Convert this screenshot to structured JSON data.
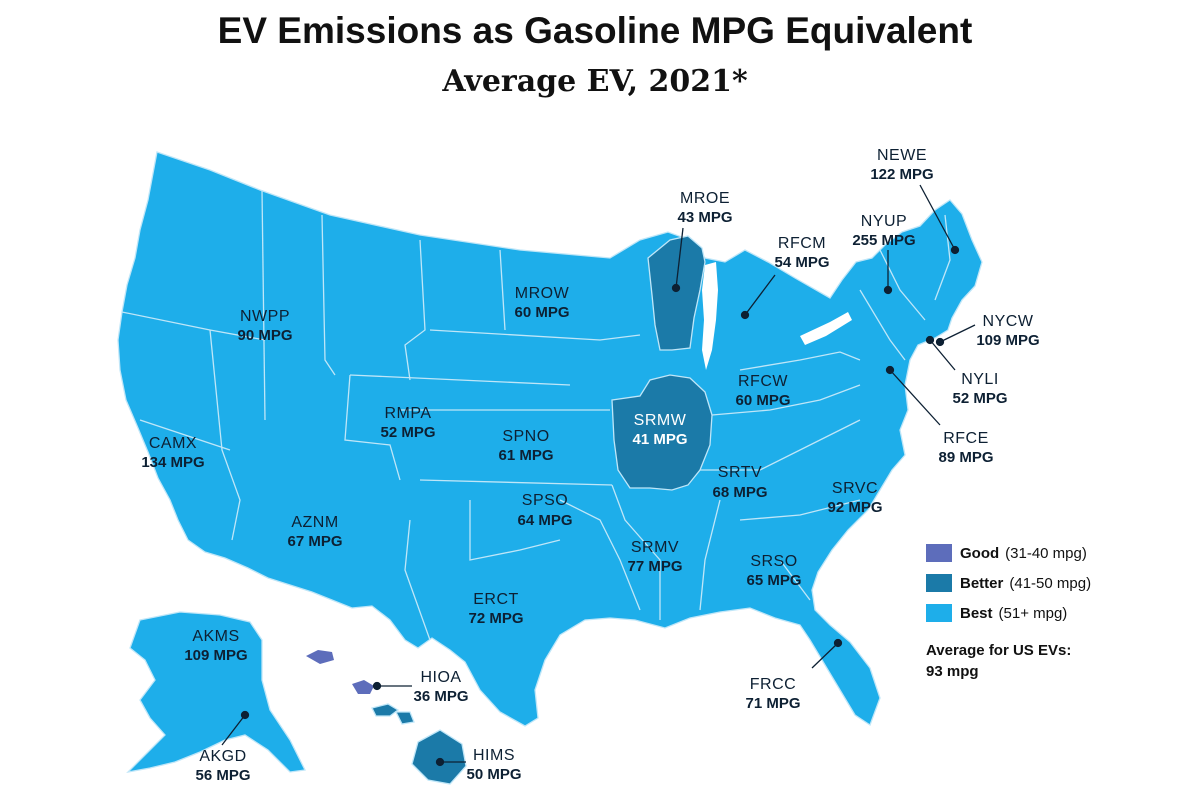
{
  "title": "EV Emissions as Gasoline MPG Equivalent",
  "subtitle": "Average EV, 2021*",
  "colors": {
    "good": "#5d6dbb",
    "better": "#1b7aa8",
    "best": "#1eaeea",
    "border": "#bfe6f8"
  },
  "legend": {
    "items": [
      {
        "label": "Good",
        "range": "(31-40 mpg)",
        "color": "#5d6dbb"
      },
      {
        "label": "Better",
        "range": "(41-50 mpg)",
        "color": "#1b7aa8"
      },
      {
        "label": "Best",
        "range": "(51+ mpg)",
        "color": "#1eaeea"
      }
    ],
    "average_label": "Average for US EVs:",
    "average_value": "93 mpg"
  },
  "regions": [
    {
      "code": "NWPP",
      "value": "90 MPG",
      "mpg": 90,
      "category": "best"
    },
    {
      "code": "CAMX",
      "value": "134 MPG",
      "mpg": 134,
      "category": "best"
    },
    {
      "code": "AZNM",
      "value": "67 MPG",
      "mpg": 67,
      "category": "best"
    },
    {
      "code": "RMPA",
      "value": "52 MPG",
      "mpg": 52,
      "category": "best"
    },
    {
      "code": "MROW",
      "value": "60 MPG",
      "mpg": 60,
      "category": "best"
    },
    {
      "code": "SPNO",
      "value": "61 MPG",
      "mpg": 61,
      "category": "best"
    },
    {
      "code": "SPSO",
      "value": "64 MPG",
      "mpg": 64,
      "category": "best"
    },
    {
      "code": "ERCT",
      "value": "72 MPG",
      "mpg": 72,
      "category": "best"
    },
    {
      "code": "MROE",
      "value": "43 MPG",
      "mpg": 43,
      "category": "better"
    },
    {
      "code": "SRMW",
      "value": "41 MPG",
      "mpg": 41,
      "category": "better"
    },
    {
      "code": "RFCM",
      "value": "54 MPG",
      "mpg": 54,
      "category": "best"
    },
    {
      "code": "RFCW",
      "value": "60 MPG",
      "mpg": 60,
      "category": "best"
    },
    {
      "code": "SRTV",
      "value": "68 MPG",
      "mpg": 68,
      "category": "best"
    },
    {
      "code": "SRMV",
      "value": "77 MPG",
      "mpg": 77,
      "category": "best"
    },
    {
      "code": "SRSO",
      "value": "65 MPG",
      "mpg": 65,
      "category": "best"
    },
    {
      "code": "SRVC",
      "value": "92 MPG",
      "mpg": 92,
      "category": "best"
    },
    {
      "code": "FRCC",
      "value": "71 MPG",
      "mpg": 71,
      "category": "best"
    },
    {
      "code": "RFCE",
      "value": "89 MPG",
      "mpg": 89,
      "category": "best"
    },
    {
      "code": "NYLI",
      "value": "52 MPG",
      "mpg": 52,
      "category": "best"
    },
    {
      "code": "NYCW",
      "value": "109 MPG",
      "mpg": 109,
      "category": "best"
    },
    {
      "code": "NYUP",
      "value": "255 MPG",
      "mpg": 255,
      "category": "best"
    },
    {
      "code": "NEWE",
      "value": "122 MPG",
      "mpg": 122,
      "category": "best"
    },
    {
      "code": "AKMS",
      "value": "109 MPG",
      "mpg": 109,
      "category": "best"
    },
    {
      "code": "AKGD",
      "value": "56 MPG",
      "mpg": 56,
      "category": "best"
    },
    {
      "code": "HIOA",
      "value": "36 MPG",
      "mpg": 36,
      "category": "good"
    },
    {
      "code": "HIMS",
      "value": "50 MPG",
      "mpg": 50,
      "category": "better"
    }
  ]
}
